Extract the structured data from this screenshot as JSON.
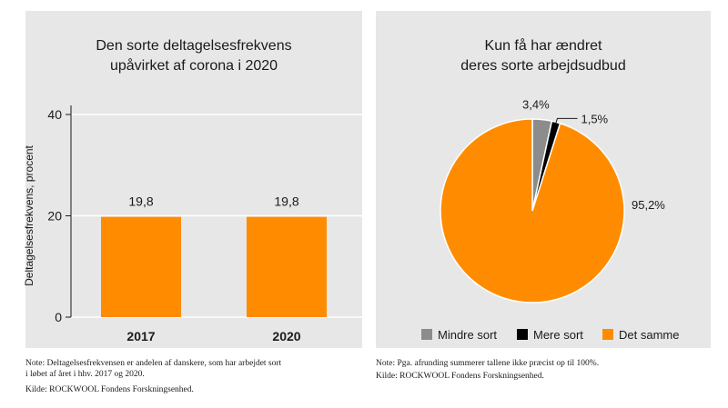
{
  "left_panel": {
    "title_line1": "Den sorte deltagelsesfrekvens",
    "title_line2": "upåvirket af corona i 2020",
    "note_line1": "Note: Deltagelsesfrekvensen er andelen af danskere, som har arbejdet sort",
    "note_line2": "i løbet af året i hhv. 2017 og 2020.",
    "source": "Kilde: ROCKWOOL Fondens Forskningsenhed."
  },
  "right_panel": {
    "title_line1": "Kun få har ændret",
    "title_line2": "deres sorte arbejdsudbud",
    "note": "Note: Pga. afrunding summerer tallene ikke præcist op til 100%.",
    "source": "Kilde: ROCKWOOL Fondens Forskningsenhed."
  },
  "chart_data": [
    {
      "type": "bar",
      "categories": [
        "2017",
        "2020"
      ],
      "values": [
        19.8,
        19.8
      ],
      "value_labels": [
        "19,8",
        "19,8"
      ],
      "ylabel": "Deltagelsesfrekvens, procent",
      "ylim": [
        0,
        40
      ],
      "yticks": [
        0,
        20,
        40
      ],
      "grid": true,
      "bar_color": "#ff8c00"
    },
    {
      "type": "pie",
      "categories": [
        "Mindre sort",
        "Mere sort",
        "Det samme"
      ],
      "values": [
        3.4,
        1.5,
        95.2
      ],
      "value_labels": [
        "3,4%",
        "1,5%",
        "95,2%"
      ],
      "colors": [
        "#8c8c8c",
        "#000000",
        "#ff8c00"
      ],
      "legend": "bottom"
    }
  ]
}
